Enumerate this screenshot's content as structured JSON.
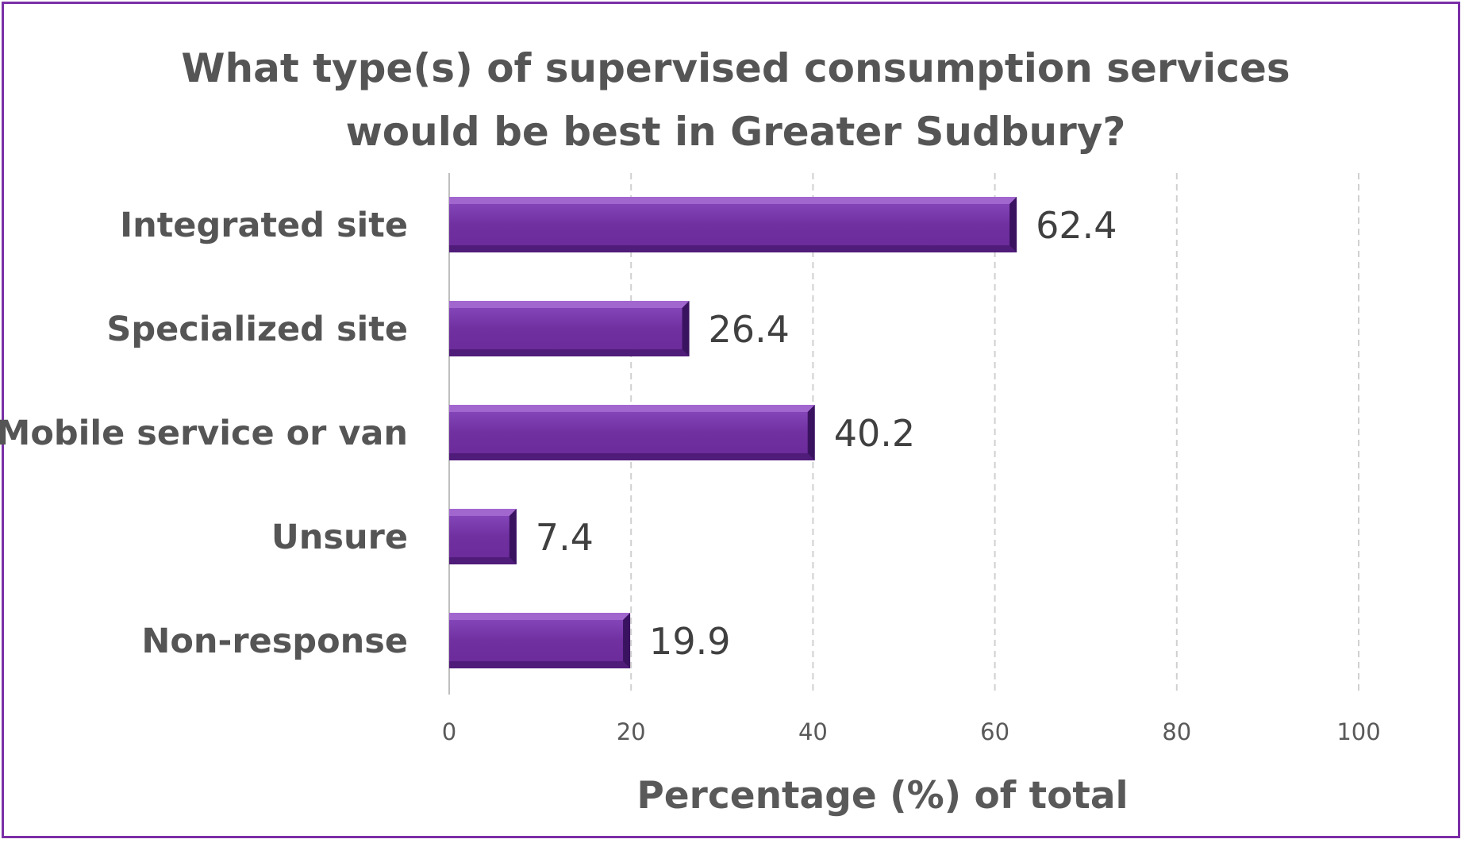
{
  "chart_data": {
    "type": "bar",
    "orientation": "horizontal",
    "title_lines": [
      "What type(s) of supervised consumption services",
      "would be best in Greater Sudbury?"
    ],
    "categories": [
      "Integrated site",
      "Specialized site",
      "Mobile service or van",
      "Unsure",
      "Non-response"
    ],
    "values": [
      62.4,
      26.4,
      40.2,
      7.4,
      19.9
    ],
    "value_labels": [
      "62.4",
      "26.4",
      "40.2",
      "7.4",
      "19.9"
    ],
    "x_ticks": [
      0,
      20,
      40,
      60,
      80,
      100
    ],
    "xlabel": "Percentage (%) of total",
    "ylabel": "",
    "xlim": [
      0,
      100
    ],
    "grid": true,
    "colors": {
      "bar": "#7030a0",
      "bar_light": "#a56ad0",
      "bar_dark": "#3a1360",
      "frame": "#7b2fa6"
    }
  }
}
